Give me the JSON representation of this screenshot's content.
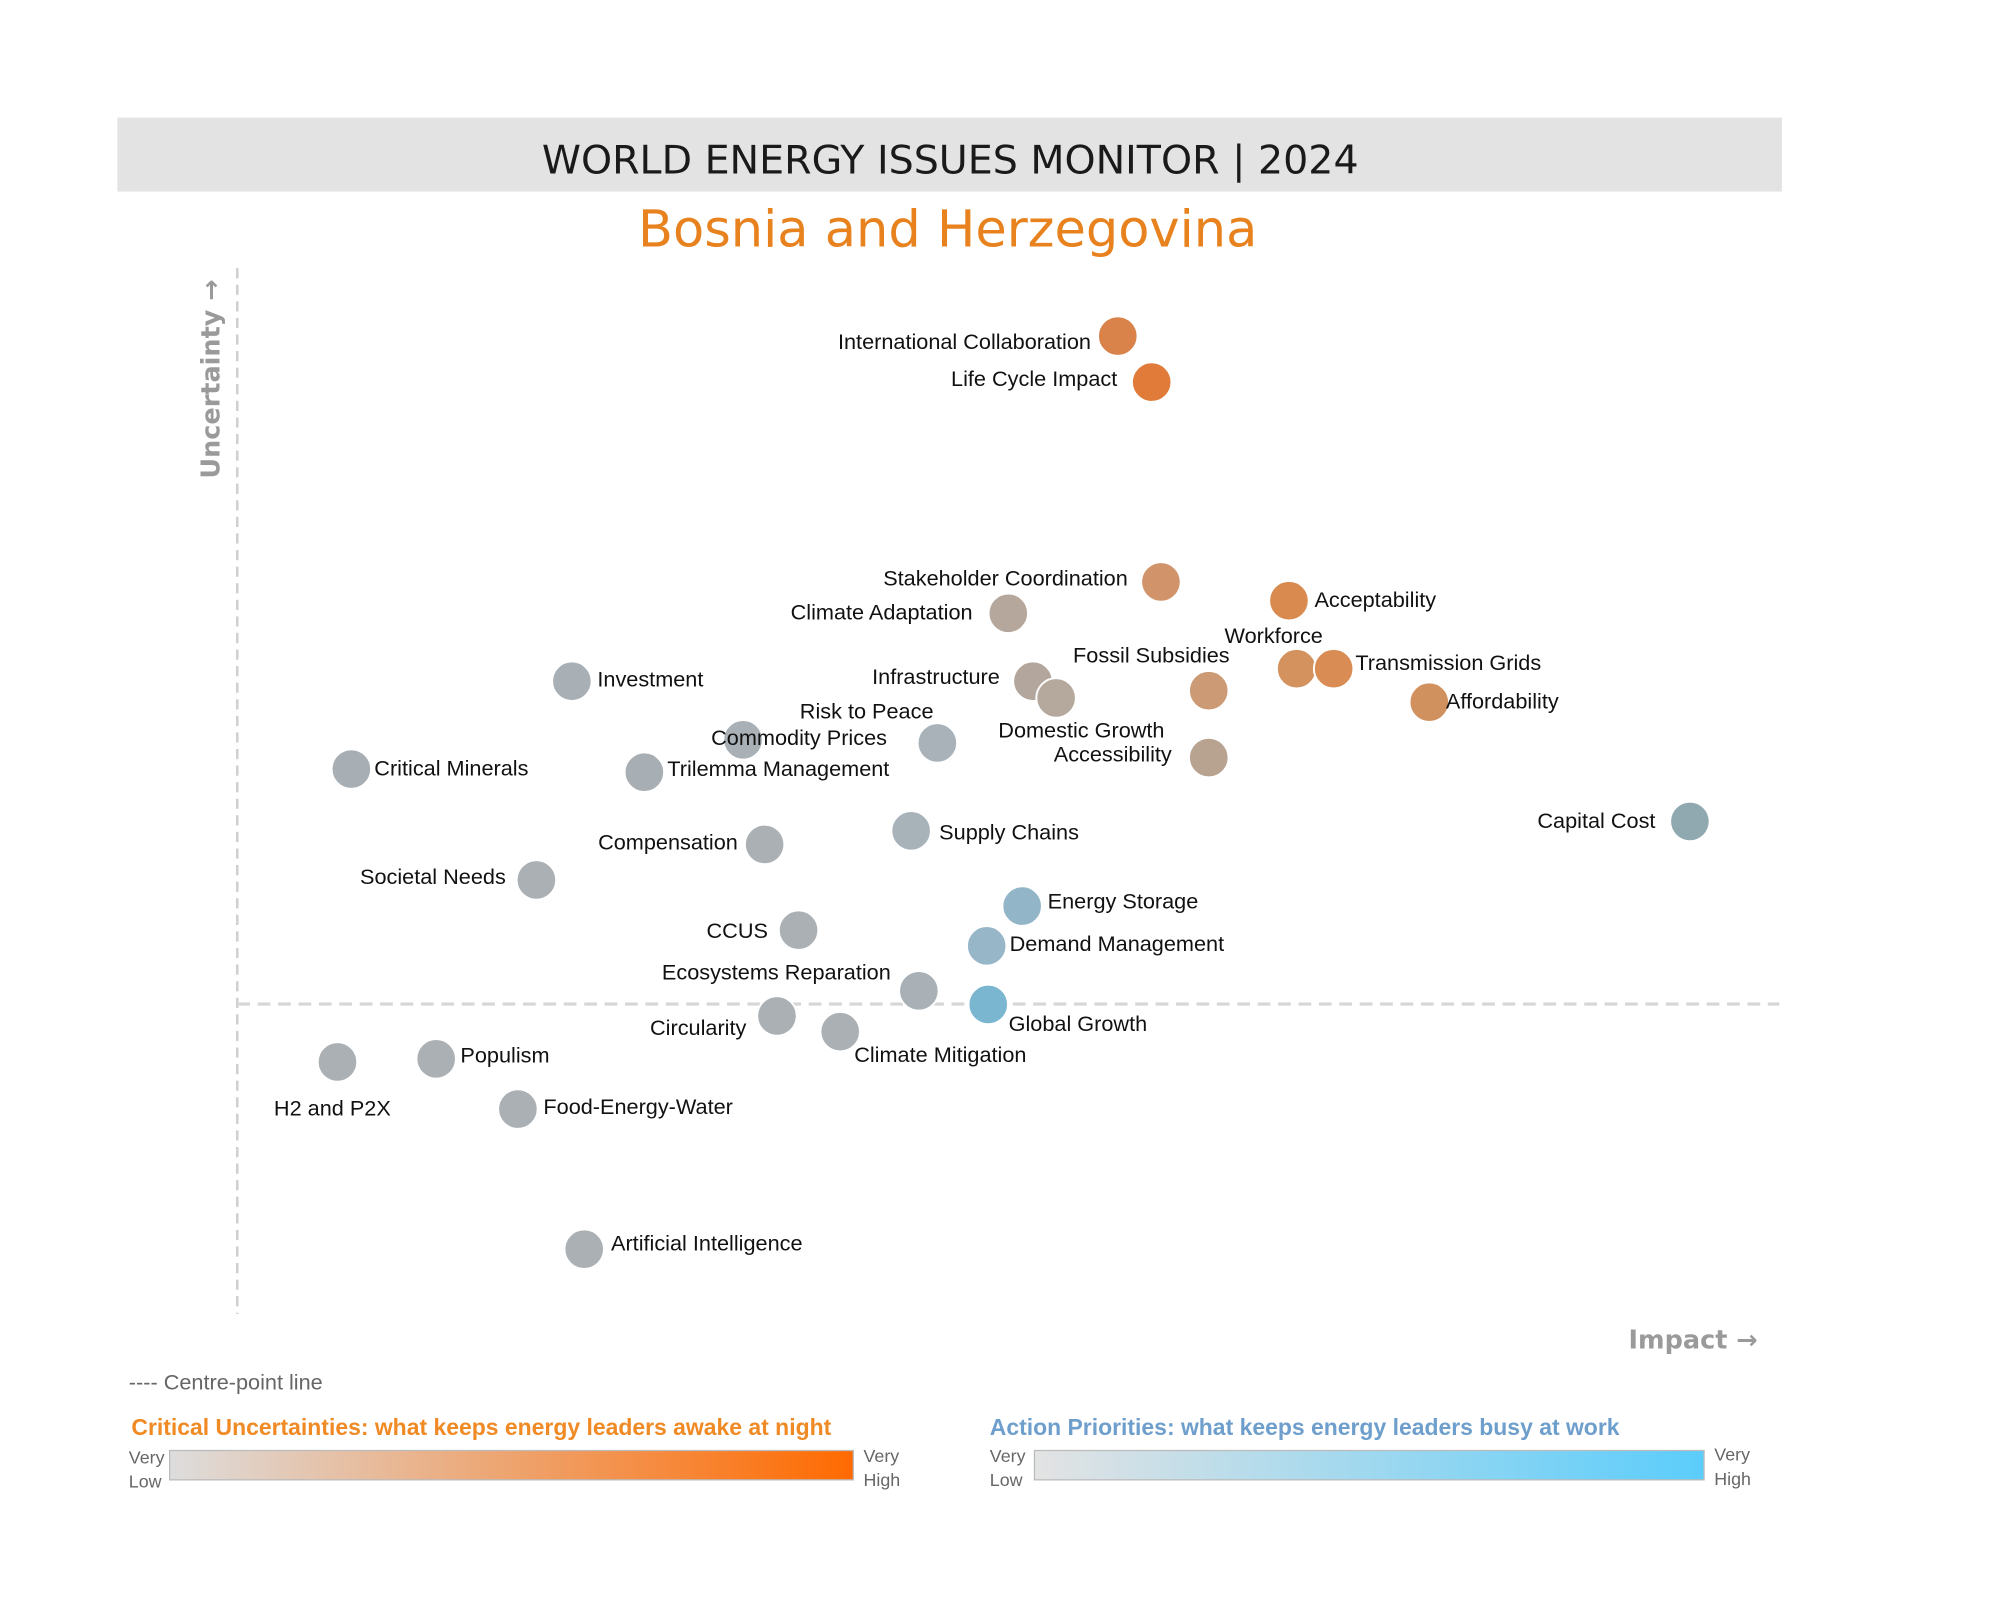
{
  "header": {
    "title": "WORLD ENERGY ISSUES MONITOR | 2024",
    "subtitle": "Bosnia and Herzegovina"
  },
  "chart_data": {
    "type": "scatter",
    "title": "WORLD ENERGY ISSUES MONITOR | 2024",
    "subtitle": "Bosnia and Herzegovina",
    "xlabel": "Impact →",
    "ylabel": "Uncertainty →",
    "xlim": [
      0,
      100
    ],
    "ylim": [
      0,
      100
    ],
    "centre_line_uncertainty": 29.6,
    "grid": false,
    "points": [
      {
        "name": "International Collaboration",
        "impact": 57.1,
        "uncertainty": 93.5,
        "color": "#d9834a"
      },
      {
        "name": "Life Cycle Impact",
        "impact": 59.3,
        "uncertainty": 89.1,
        "color": "#e07b3a"
      },
      {
        "name": "Stakeholder Coordination",
        "impact": 59.9,
        "uncertainty": 70.0,
        "color": "#d0936a"
      },
      {
        "name": "Climate Adaptation",
        "impact": 50.0,
        "uncertainty": 67.0,
        "color": "#b5a79c"
      },
      {
        "name": "Acceptability",
        "impact": 68.2,
        "uncertainty": 68.2,
        "color": "#d98a4e"
      },
      {
        "name": "Workforce",
        "impact": 68.7,
        "uncertainty": 61.7,
        "color": "#d4925f"
      },
      {
        "name": "Transmission Grids",
        "impact": 71.1,
        "uncertainty": 61.7,
        "color": "#d98d55"
      },
      {
        "name": "Affordability",
        "impact": 77.3,
        "uncertainty": 58.5,
        "color": "#d0915f"
      },
      {
        "name": "Fossil Subsidies",
        "impact": 63.0,
        "uncertainty": 59.6,
        "color": "#cc9a74"
      },
      {
        "name": "Infrastructure",
        "impact": 51.6,
        "uncertainty": 60.5,
        "color": "#b3a69c"
      },
      {
        "name": "Domestic Growth",
        "impact": 53.1,
        "uncertainty": 58.9,
        "color": "#b5a89d"
      },
      {
        "name": "Accessibility",
        "impact": 63.0,
        "uncertainty": 53.2,
        "color": "#b8a290"
      },
      {
        "name": "Risk to Peace",
        "impact": 45.4,
        "uncertainty": 54.6,
        "color": "#a9b2b8"
      },
      {
        "name": "Investment",
        "impact": 21.7,
        "uncertainty": 60.5,
        "color": "#a9b0b5"
      },
      {
        "name": "Commodity Prices",
        "impact": 32.8,
        "uncertainty": 54.9,
        "color": "#a9b1b6"
      },
      {
        "name": "Critical Minerals",
        "impact": 7.4,
        "uncertainty": 52.1,
        "color": "#a8afb4"
      },
      {
        "name": "Trilemma Management",
        "impact": 26.4,
        "uncertainty": 51.8,
        "color": "#a8afb4"
      },
      {
        "name": "Compensation",
        "impact": 34.2,
        "uncertainty": 44.9,
        "color": "#aab0b4"
      },
      {
        "name": "Supply Chains",
        "impact": 43.7,
        "uncertainty": 46.2,
        "color": "#a8b2b9"
      },
      {
        "name": "Capital Cost",
        "impact": 94.2,
        "uncertainty": 47.1,
        "color": "#90a9b0"
      },
      {
        "name": "Societal Needs",
        "impact": 19.4,
        "uncertainty": 41.5,
        "color": "#aab0b4"
      },
      {
        "name": "Energy Storage",
        "impact": 50.9,
        "uncertainty": 39.0,
        "color": "#92b5c8"
      },
      {
        "name": "CCUS",
        "impact": 36.4,
        "uncertainty": 36.7,
        "color": "#aab0b4"
      },
      {
        "name": "Demand Management",
        "impact": 48.6,
        "uncertainty": 35.2,
        "color": "#97b7c8"
      },
      {
        "name": "Ecosystems Reparation",
        "impact": 44.2,
        "uncertainty": 30.9,
        "color": "#a9b1b6"
      },
      {
        "name": "Global Growth",
        "impact": 48.7,
        "uncertainty": 29.6,
        "color": "#7ab6d0"
      },
      {
        "name": "Circularity",
        "impact": 35.0,
        "uncertainty": 28.5,
        "color": "#aab0b4"
      },
      {
        "name": "Climate Mitigation",
        "impact": 39.1,
        "uncertainty": 27.0,
        "color": "#aab0b4"
      },
      {
        "name": "H2 and P2X",
        "impact": 6.5,
        "uncertainty": 24.1,
        "color": "#aab0b4"
      },
      {
        "name": "Populism",
        "impact": 12.9,
        "uncertainty": 24.4,
        "color": "#aab0b4"
      },
      {
        "name": "Food-Energy-Water",
        "impact": 18.2,
        "uncertainty": 19.6,
        "color": "#aab0b4"
      },
      {
        "name": "Artificial Intelligence",
        "impact": 22.5,
        "uncertainty": 6.2,
        "color": "#aab0b4"
      }
    ]
  },
  "legend": {
    "centre_line": "---- Centre-point line",
    "critical": {
      "title": "Critical Uncertainties: what keeps energy leaders awake at night",
      "low": [
        "Very",
        "Low"
      ],
      "high": [
        "Very",
        "High"
      ],
      "color_low": "#dddddd",
      "color_high": "#ff6a00"
    },
    "action": {
      "title": "Action Priorities: what keeps energy leaders busy at work",
      "low": [
        "Very",
        "Low"
      ],
      "high": [
        "Very",
        "High"
      ],
      "color_low": "#e3e3e3",
      "color_high": "#5bcdfb"
    }
  }
}
